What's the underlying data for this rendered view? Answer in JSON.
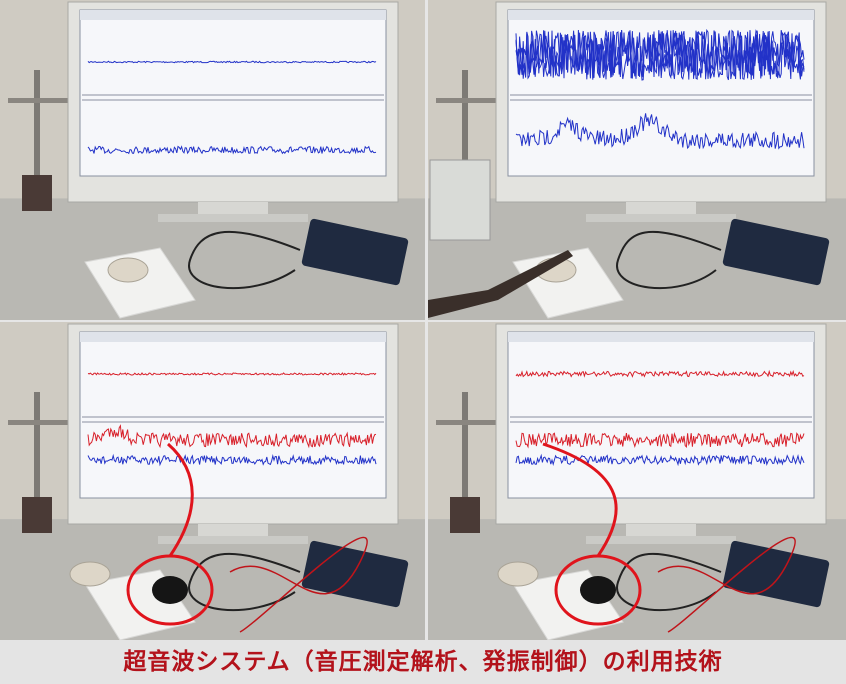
{
  "caption": "超音波システム（音圧測定解析、発振制御）の利用技術"
}
